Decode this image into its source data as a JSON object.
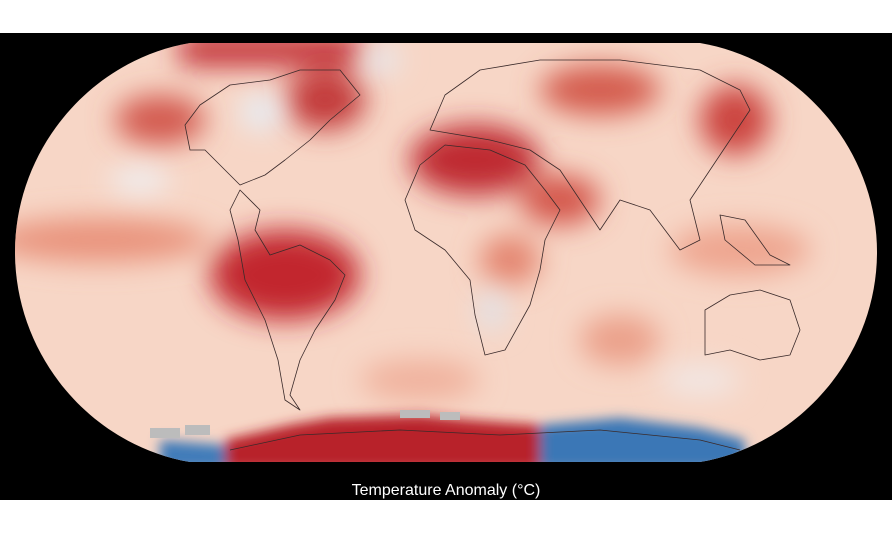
{
  "map": {
    "caption": "Temperature Anomaly (°C)"
  }
}
